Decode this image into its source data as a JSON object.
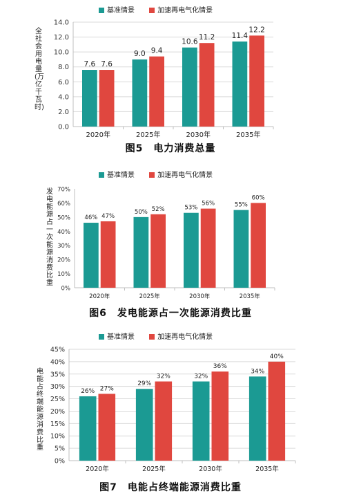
{
  "colors": {
    "base": "#1b9a93",
    "accel": "#e0473f",
    "grid": "#d9d9d9",
    "axis": "#bfbfbf"
  },
  "chart_data": [
    {
      "type": "bar",
      "title": "图5　电力消费总量",
      "ylabel": "全社会用电量(万亿千瓦时)",
      "categories": [
        "2020年",
        "2025年",
        "2030年",
        "2035年"
      ],
      "series": [
        {
          "name": "基准情景",
          "values": [
            7.6,
            9.0,
            10.6,
            11.4
          ],
          "labels": [
            "7.6",
            "9.0",
            "10.6",
            "11.4"
          ]
        },
        {
          "name": "加速再电气化情景",
          "values": [
            7.6,
            9.4,
            11.2,
            12.2
          ],
          "labels": [
            "7.6",
            "9.4",
            "11.2",
            "12.2"
          ]
        }
      ],
      "ylim": [
        0,
        14
      ],
      "yticks": [
        "0.0",
        "2.0",
        "4.0",
        "6.0",
        "8.0",
        "10.0",
        "12.0",
        "14.0"
      ],
      "grid": true,
      "legend": "top"
    },
    {
      "type": "bar",
      "title": "图6　发电能源占一次能源消费比重",
      "ylabel": "发电能源占一次能源消费比重",
      "categories": [
        "2020年",
        "2025年",
        "2030年",
        "2035年"
      ],
      "series": [
        {
          "name": "基准情景",
          "values": [
            46,
            50,
            53,
            55
          ],
          "labels": [
            "46%",
            "50%",
            "53%",
            "55%"
          ]
        },
        {
          "name": "加速再电气化情景",
          "values": [
            47,
            52,
            56,
            60
          ],
          "labels": [
            "47%",
            "52%",
            "56%",
            "60%"
          ]
        }
      ],
      "ylim": [
        0,
        70
      ],
      "yticks": [
        "0%",
        "10%",
        "20%",
        "30%",
        "40%",
        "50%",
        "60%",
        "70%"
      ],
      "grid": false,
      "legend": "top"
    },
    {
      "type": "bar",
      "title": "图7　电能占终端能源消费比重",
      "ylabel": "电能占终端能源消费比重",
      "categories": [
        "2020年",
        "2025年",
        "2030年",
        "2035年"
      ],
      "series": [
        {
          "name": "基准情景",
          "values": [
            26,
            29,
            32,
            34
          ],
          "labels": [
            "26%",
            "29%",
            "32%",
            "34%"
          ]
        },
        {
          "name": "加速再电气化情景",
          "values": [
            27,
            32,
            36,
            40
          ],
          "labels": [
            "27%",
            "32%",
            "36%",
            "40%"
          ]
        }
      ],
      "ylim": [
        0,
        45
      ],
      "yticks": [
        "0%",
        "5%",
        "10%",
        "15%",
        "20%",
        "25%",
        "30%",
        "35%",
        "40%",
        "45%"
      ],
      "grid": true,
      "legend": "top"
    }
  ]
}
